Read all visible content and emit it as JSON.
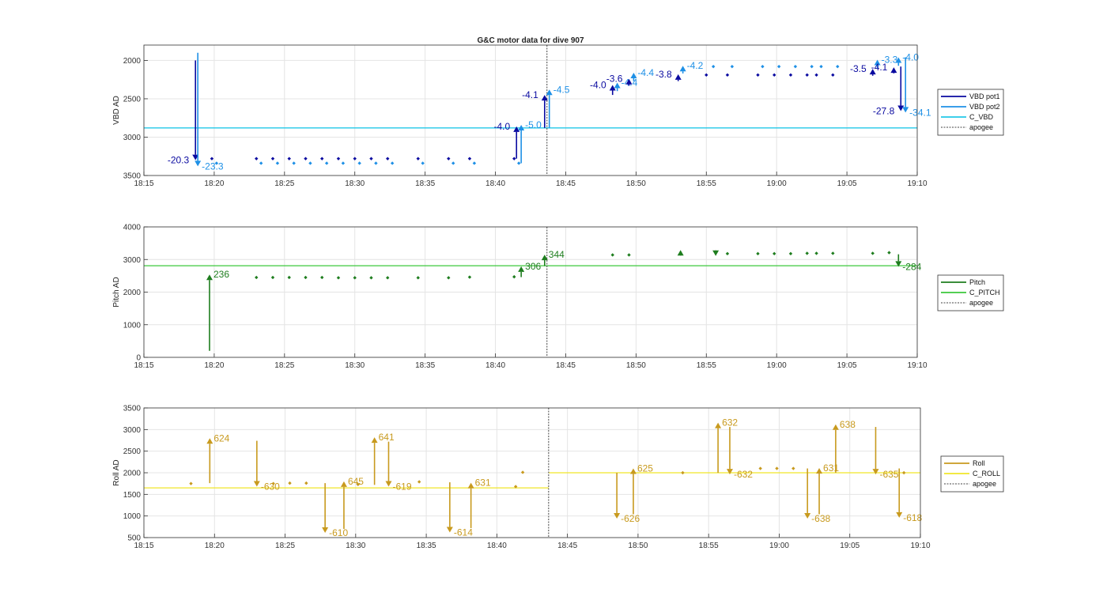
{
  "figure_title": "G&C motor data for dive 907",
  "chart_data": [
    {
      "type": "scatter",
      "title": "G&C motor data for dive 907",
      "ylabel": "VBD AD",
      "xlabel": "",
      "xlim": [
        "18:15",
        "19:10"
      ],
      "ylim": [
        1800,
        3500
      ],
      "y_reversed": true,
      "xticks": [
        "18:15",
        "18:20",
        "18:25",
        "18:30",
        "18:35",
        "18:40",
        "18:45",
        "18:50",
        "18:55",
        "19:00",
        "19:05",
        "19:10"
      ],
      "yticks": [
        "2000",
        "2500",
        "3000",
        "3500"
      ],
      "grid": true,
      "legend_placement": "right",
      "legend": [
        {
          "label": "VBD pot1",
          "style": "line",
          "color": "#0a0aa0"
        },
        {
          "label": "VBD pot2",
          "style": "line",
          "color": "#1e90e6"
        },
        {
          "label": "C_VBD",
          "style": "line",
          "color": "#22c8e8"
        },
        {
          "label": "apogee",
          "style": "dotted",
          "color": "#444444"
        }
      ],
      "reference_line": {
        "name": "C_VBD",
        "value": 2880
      },
      "apogee_time": "18:43:40",
      "points": [
        {
          "series": "VBD pot1",
          "t": "18:19:50",
          "y": 3280
        },
        {
          "series": "VBD pot2",
          "t": "18:20:10",
          "y": 3340
        },
        {
          "series": "VBD pot1",
          "t": "18:23:00",
          "y": 3280
        },
        {
          "series": "VBD pot2",
          "t": "18:23:20",
          "y": 3340
        },
        {
          "series": "VBD pot1",
          "t": "18:24:10",
          "y": 3280
        },
        {
          "series": "VBD pot2",
          "t": "18:24:30",
          "y": 3340
        },
        {
          "series": "VBD pot1",
          "t": "18:25:20",
          "y": 3280
        },
        {
          "series": "VBD pot2",
          "t": "18:25:40",
          "y": 3340
        },
        {
          "series": "VBD pot1",
          "t": "18:26:30",
          "y": 3280
        },
        {
          "series": "VBD pot2",
          "t": "18:26:50",
          "y": 3340
        },
        {
          "series": "VBD pot1",
          "t": "18:27:40",
          "y": 3280
        },
        {
          "series": "VBD pot2",
          "t": "18:28:00",
          "y": 3340
        },
        {
          "series": "VBD pot1",
          "t": "18:28:50",
          "y": 3280
        },
        {
          "series": "VBD pot2",
          "t": "18:29:10",
          "y": 3340
        },
        {
          "series": "VBD pot1",
          "t": "18:30:00",
          "y": 3280
        },
        {
          "series": "VBD pot2",
          "t": "18:30:20",
          "y": 3340
        },
        {
          "series": "VBD pot1",
          "t": "18:31:10",
          "y": 3280
        },
        {
          "series": "VBD pot2",
          "t": "18:31:30",
          "y": 3340
        },
        {
          "series": "VBD pot1",
          "t": "18:32:20",
          "y": 3280
        },
        {
          "series": "VBD pot2",
          "t": "18:32:40",
          "y": 3340
        },
        {
          "series": "VBD pot1",
          "t": "18:34:30",
          "y": 3280
        },
        {
          "series": "VBD pot2",
          "t": "18:34:50",
          "y": 3340
        },
        {
          "series": "VBD pot1",
          "t": "18:36:40",
          "y": 3280
        },
        {
          "series": "VBD pot2",
          "t": "18:37:00",
          "y": 3340
        },
        {
          "series": "VBD pot1",
          "t": "18:38:10",
          "y": 3280
        },
        {
          "series": "VBD pot2",
          "t": "18:38:30",
          "y": 3340
        },
        {
          "series": "VBD pot1",
          "t": "18:41:20",
          "y": 3280
        },
        {
          "series": "VBD pot2",
          "t": "18:41:40",
          "y": 3340
        },
        {
          "series": "VBD pot1",
          "t": "18:55:00",
          "y": 2190
        },
        {
          "series": "VBD pot1",
          "t": "18:56:30",
          "y": 2190
        },
        {
          "series": "VBD pot2",
          "t": "18:55:30",
          "y": 2080
        },
        {
          "series": "VBD pot2",
          "t": "18:56:50",
          "y": 2080
        },
        {
          "series": "VBD pot1",
          "t": "18:58:40",
          "y": 2190
        },
        {
          "series": "VBD pot2",
          "t": "18:59:00",
          "y": 2080
        },
        {
          "series": "VBD pot1",
          "t": "18:59:50",
          "y": 2190
        },
        {
          "series": "VBD pot2",
          "t": "19:00:10",
          "y": 2080
        },
        {
          "series": "VBD pot1",
          "t": "19:01:00",
          "y": 2190
        },
        {
          "series": "VBD pot2",
          "t": "19:01:20",
          "y": 2080
        },
        {
          "series": "VBD pot1",
          "t": "19:02:10",
          "y": 2190
        },
        {
          "series": "VBD pot2",
          "t": "19:02:30",
          "y": 2080
        },
        {
          "series": "VBD pot1",
          "t": "19:02:50",
          "y": 2190
        },
        {
          "series": "VBD pot2",
          "t": "19:03:10",
          "y": 2080
        },
        {
          "series": "VBD pot1",
          "t": "19:04:00",
          "y": 2190
        },
        {
          "series": "VBD pot2",
          "t": "19:04:20",
          "y": 2080
        }
      ],
      "moves": [
        {
          "series": "VBD pot1",
          "t": "18:18:40",
          "from": 2000,
          "to": 3300,
          "label": "-20.3",
          "label_side": "left"
        },
        {
          "series": "VBD pot2",
          "t": "18:18:50",
          "from": 1900,
          "to": 3380,
          "label": "-23.3",
          "label_side": "right"
        },
        {
          "series": "VBD pot1",
          "t": "18:41:30",
          "from": 3280,
          "to": 2860,
          "label": "-4.0",
          "label_side": "left"
        },
        {
          "series": "VBD pot2",
          "t": "18:41:50",
          "from": 3340,
          "to": 2840,
          "label": "-5.0",
          "label_side": "right"
        },
        {
          "series": "VBD pot1",
          "t": "18:43:30",
          "from": 2880,
          "to": 2450,
          "label": "-4.1",
          "label_side": "left"
        },
        {
          "series": "VBD pot2",
          "t": "18:43:50",
          "from": 2880,
          "to": 2380,
          "label": "-4.5",
          "label_side": "right"
        },
        {
          "series": "VBD pot1",
          "t": "18:48:20",
          "from": 2450,
          "to": 2320,
          "label": "-4.0",
          "label_side": "left"
        },
        {
          "series": "VBD pot2",
          "t": "18:48:40",
          "from": 2400,
          "to": 2290,
          "label": "-4.4",
          "label_side": "right"
        },
        {
          "series": "VBD pot1",
          "t": "18:49:30",
          "from": 2330,
          "to": 2240,
          "label": "-3.6",
          "label_side": "left"
        },
        {
          "series": "VBD pot2",
          "t": "18:49:50",
          "from": 2270,
          "to": 2160,
          "label": "-4.4",
          "label_side": "right"
        },
        {
          "series": "VBD pot1",
          "t": "18:53:00",
          "from": 2270,
          "to": 2180,
          "label": "-3.8",
          "label_side": "left"
        },
        {
          "series": "VBD pot2",
          "t": "18:53:20",
          "from": 2170,
          "to": 2070,
          "label": "-4.2",
          "label_side": "right"
        },
        {
          "series": "VBD pot1",
          "t": "19:06:50",
          "from": 2200,
          "to": 2110,
          "label": "-3.5",
          "label_side": "left"
        },
        {
          "series": "VBD pot2",
          "t": "19:07:10",
          "from": 2100,
          "to": 1990,
          "label": "-3.3",
          "label_side": "right"
        },
        {
          "series": "VBD pot1",
          "t": "19:08:20",
          "from": 2170,
          "to": 2090,
          "label": "-4.1",
          "label_side": "left"
        },
        {
          "series": "VBD pot2",
          "t": "19:08:40",
          "from": 2070,
          "to": 1960,
          "label": "-4.0",
          "label_side": "right"
        },
        {
          "series": "VBD pot1",
          "t": "19:08:50",
          "from": 2080,
          "to": 2660,
          "label": "-27.8",
          "label_side": "left"
        },
        {
          "series": "VBD pot2",
          "t": "19:09:10",
          "from": 1960,
          "to": 2680,
          "label": "-34.1",
          "label_side": "right"
        }
      ]
    },
    {
      "type": "scatter",
      "title": "",
      "ylabel": "Pitch AD",
      "xlabel": "",
      "xlim": [
        "18:15",
        "19:10"
      ],
      "ylim": [
        0,
        4000
      ],
      "y_reversed": false,
      "xticks": [
        "18:15",
        "18:20",
        "18:25",
        "18:30",
        "18:35",
        "18:40",
        "18:45",
        "18:50",
        "18:55",
        "19:00",
        "19:05",
        "19:10"
      ],
      "yticks": [
        "0",
        "1000",
        "2000",
        "3000",
        "4000"
      ],
      "grid": true,
      "legend_placement": "right",
      "legend": [
        {
          "label": "Pitch",
          "style": "line",
          "color": "#1e7d1e"
        },
        {
          "label": "C_PITCH",
          "style": "line",
          "color": "#3cc83c"
        },
        {
          "label": "apogee",
          "style": "dotted",
          "color": "#444444"
        }
      ],
      "reference_line": {
        "name": "C_PITCH",
        "value": 2810
      },
      "apogee_time": "18:43:40",
      "points": [
        {
          "series": "Pitch",
          "t": "18:23:00",
          "y": 2450
        },
        {
          "series": "Pitch",
          "t": "18:24:10",
          "y": 2450
        },
        {
          "series": "Pitch",
          "t": "18:25:20",
          "y": 2450
        },
        {
          "series": "Pitch",
          "t": "18:26:30",
          "y": 2450
        },
        {
          "series": "Pitch",
          "t": "18:27:40",
          "y": 2450
        },
        {
          "series": "Pitch",
          "t": "18:28:50",
          "y": 2440
        },
        {
          "series": "Pitch",
          "t": "18:30:00",
          "y": 2440
        },
        {
          "series": "Pitch",
          "t": "18:31:10",
          "y": 2440
        },
        {
          "series": "Pitch",
          "t": "18:32:20",
          "y": 2440
        },
        {
          "series": "Pitch",
          "t": "18:34:30",
          "y": 2440
        },
        {
          "series": "Pitch",
          "t": "18:36:40",
          "y": 2440
        },
        {
          "series": "Pitch",
          "t": "18:38:10",
          "y": 2460
        },
        {
          "series": "Pitch",
          "t": "18:41:20",
          "y": 2470
        },
        {
          "series": "Pitch",
          "t": "18:48:20",
          "y": 3140
        },
        {
          "series": "Pitch",
          "t": "18:49:30",
          "y": 3140
        },
        {
          "series": "Pitch",
          "t": "18:56:30",
          "y": 3180
        },
        {
          "series": "Pitch",
          "t": "18:58:40",
          "y": 3180
        },
        {
          "series": "Pitch",
          "t": "18:59:50",
          "y": 3180
        },
        {
          "series": "Pitch",
          "t": "19:01:00",
          "y": 3180
        },
        {
          "series": "Pitch",
          "t": "19:02:10",
          "y": 3190
        },
        {
          "series": "Pitch",
          "t": "19:02:50",
          "y": 3190
        },
        {
          "series": "Pitch",
          "t": "19:04:00",
          "y": 3190
        },
        {
          "series": "Pitch",
          "t": "19:06:50",
          "y": 3190
        },
        {
          "series": "Pitch",
          "t": "19:08:00",
          "y": 3210
        }
      ],
      "moves": [
        {
          "series": "Pitch",
          "t": "18:19:40",
          "from": 200,
          "to": 2540,
          "label": "236",
          "label_side": "right"
        },
        {
          "series": "Pitch",
          "t": "18:41:50",
          "from": 2460,
          "to": 2790,
          "label": "306",
          "label_side": "right"
        },
        {
          "series": "Pitch",
          "t": "18:43:30",
          "from": 2800,
          "to": 3150,
          "label": "344",
          "label_side": "right"
        },
        {
          "series": "Pitch",
          "t": "18:53:10",
          "from": 3180,
          "to": 3290,
          "label": "",
          "label_side": "right"
        },
        {
          "series": "Pitch",
          "t": "18:55:40",
          "from": 3210,
          "to": 3110,
          "label": "",
          "label_side": "right"
        },
        {
          "series": "Pitch",
          "t": "19:08:40",
          "from": 3160,
          "to": 2780,
          "label": "-284",
          "label_side": "right"
        }
      ]
    },
    {
      "type": "scatter",
      "title": "",
      "ylabel": "Roll AD",
      "xlabel": "",
      "xlim": [
        "18:15",
        "19:10"
      ],
      "ylim": [
        500,
        3500
      ],
      "y_reversed": false,
      "xticks": [
        "18:15",
        "18:20",
        "18:25",
        "18:30",
        "18:35",
        "18:40",
        "18:45",
        "18:50",
        "18:55",
        "19:00",
        "19:05",
        "19:10"
      ],
      "yticks": [
        "500",
        "1000",
        "1500",
        "2000",
        "2500",
        "3000",
        "3500"
      ],
      "grid": true,
      "legend_placement": "right",
      "legend": [
        {
          "label": "Roll",
          "style": "line",
          "color": "#c89a1e"
        },
        {
          "label": "C_ROLL",
          "style": "line",
          "color": "#f0e628"
        },
        {
          "label": "apogee",
          "style": "dotted",
          "color": "#444444"
        }
      ],
      "reference_line_segments": [
        {
          "name": "C_ROLL",
          "from_t": "18:15",
          "to_t": "18:43:40",
          "value": 1650
        },
        {
          "name": "C_ROLL",
          "from_t": "18:43:40",
          "to_t": "19:10",
          "value": 2000
        }
      ],
      "apogee_time": "18:43:40",
      "points": [
        {
          "series": "Roll",
          "t": "18:18:20",
          "y": 1750
        },
        {
          "series": "Roll",
          "t": "18:24:10",
          "y": 1750
        },
        {
          "series": "Roll",
          "t": "18:25:20",
          "y": 1760
        },
        {
          "series": "Roll",
          "t": "18:26:30",
          "y": 1760
        },
        {
          "series": "Roll",
          "t": "18:30:10",
          "y": 1730
        },
        {
          "series": "Roll",
          "t": "18:34:30",
          "y": 1790
        },
        {
          "series": "Roll",
          "t": "18:41:20",
          "y": 1680
        },
        {
          "series": "Roll",
          "t": "18:41:50",
          "y": 2010
        },
        {
          "series": "Roll",
          "t": "18:53:10",
          "y": 2000
        },
        {
          "series": "Roll",
          "t": "18:58:40",
          "y": 2100
        },
        {
          "series": "Roll",
          "t": "18:59:50",
          "y": 2100
        },
        {
          "series": "Roll",
          "t": "19:01:00",
          "y": 2100
        },
        {
          "series": "Roll",
          "t": "19:08:50",
          "y": 2000
        }
      ],
      "moves": [
        {
          "series": "Roll",
          "t": "18:19:40",
          "from": 1760,
          "to": 2800,
          "label": "624",
          "label_side": "right"
        },
        {
          "series": "Roll",
          "t": "18:23:00",
          "from": 2740,
          "to": 1680,
          "label": "-630",
          "label_side": "right"
        },
        {
          "series": "Roll",
          "t": "18:27:50",
          "from": 1760,
          "to": 610,
          "label": "-610",
          "label_side": "right"
        },
        {
          "series": "Roll",
          "t": "18:29:10",
          "from": 700,
          "to": 1800,
          "label": "645",
          "label_side": "right"
        },
        {
          "series": "Roll",
          "t": "18:31:20",
          "from": 1720,
          "to": 2820,
          "label": "641",
          "label_side": "right"
        },
        {
          "series": "Roll",
          "t": "18:32:20",
          "from": 2720,
          "to": 1680,
          "label": "-619",
          "label_side": "right"
        },
        {
          "series": "Roll",
          "t": "18:36:40",
          "from": 1780,
          "to": 620,
          "label": "-614",
          "label_side": "right"
        },
        {
          "series": "Roll",
          "t": "18:38:10",
          "from": 720,
          "to": 1770,
          "label": "631",
          "label_side": "right"
        },
        {
          "series": "Roll",
          "t": "18:48:30",
          "from": 2000,
          "to": 940,
          "label": "-626",
          "label_side": "right"
        },
        {
          "series": "Roll",
          "t": "18:49:40",
          "from": 1040,
          "to": 2100,
          "label": "625",
          "label_side": "right"
        },
        {
          "series": "Roll",
          "t": "18:55:40",
          "from": 2000,
          "to": 3160,
          "label": "632",
          "label_side": "right"
        },
        {
          "series": "Roll",
          "t": "18:56:30",
          "from": 3060,
          "to": 1960,
          "label": "-632",
          "label_side": "right"
        },
        {
          "series": "Roll",
          "t": "19:02:00",
          "from": 2100,
          "to": 940,
          "label": "-638",
          "label_side": "right"
        },
        {
          "series": "Roll",
          "t": "19:02:50",
          "from": 1040,
          "to": 2110,
          "label": "631",
          "label_side": "right"
        },
        {
          "series": "Roll",
          "t": "19:04:00",
          "from": 2000,
          "to": 3120,
          "label": "638",
          "label_side": "right"
        },
        {
          "series": "Roll",
          "t": "19:06:50",
          "from": 3060,
          "to": 1960,
          "label": "-635",
          "label_side": "right"
        },
        {
          "series": "Roll",
          "t": "19:08:30",
          "from": 2100,
          "to": 960,
          "label": "-618",
          "label_side": "right"
        }
      ]
    }
  ]
}
